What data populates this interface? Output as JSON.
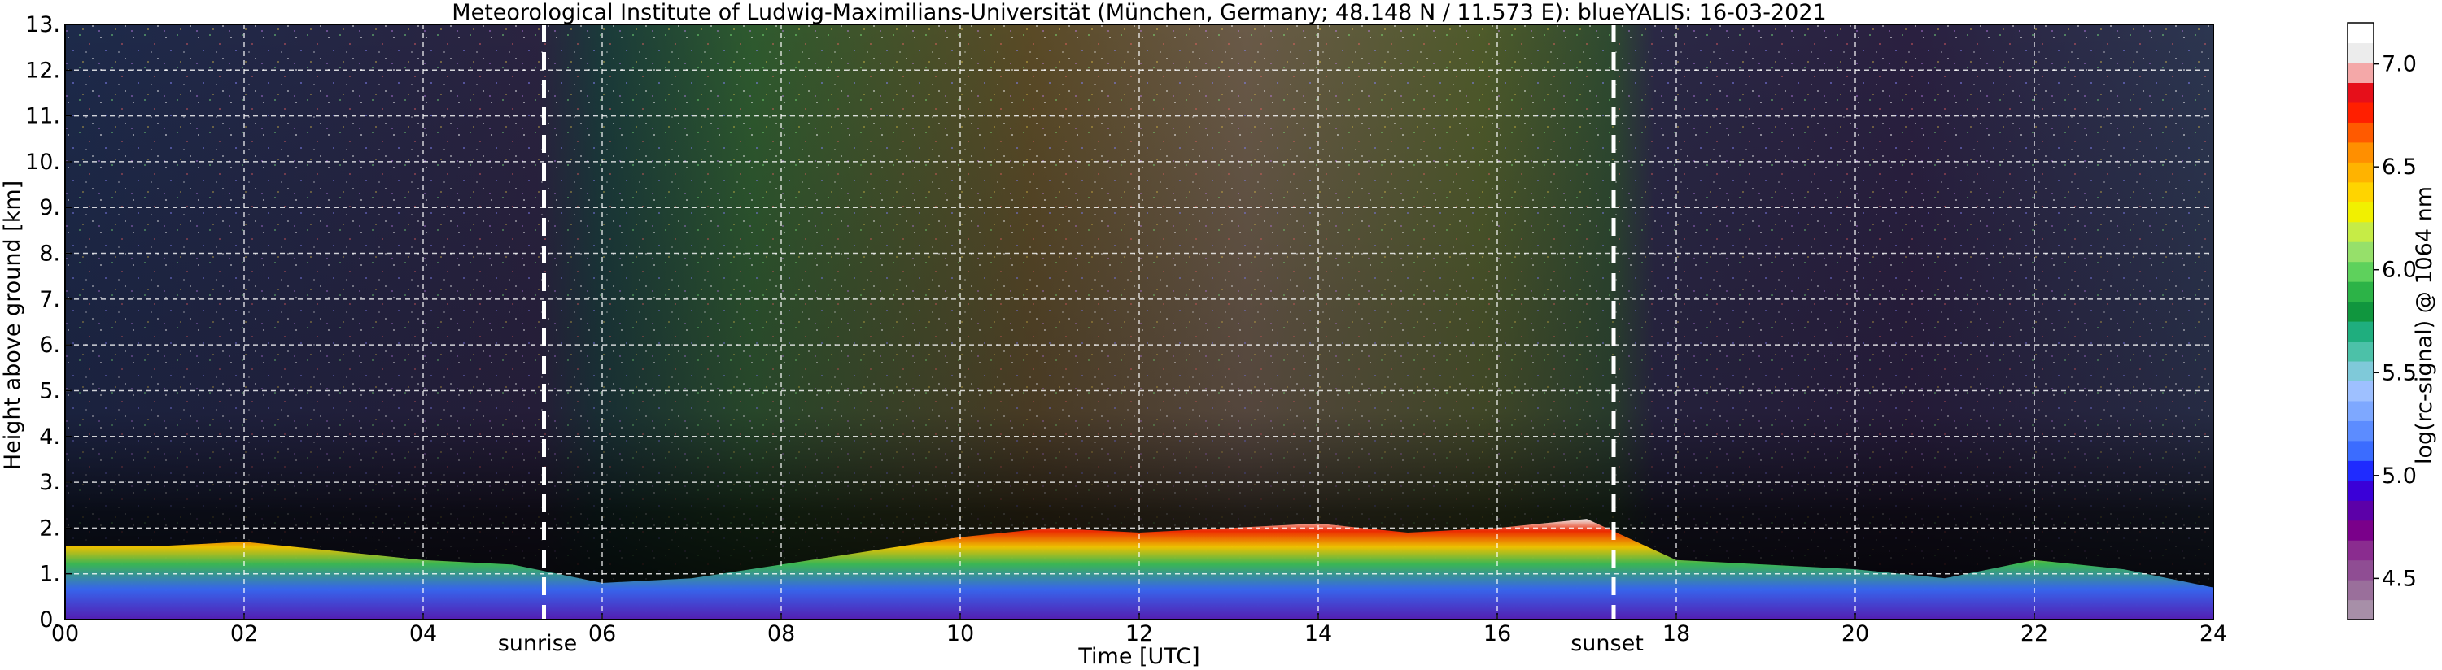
{
  "chart_data": {
    "type": "heatmap",
    "title": "Meteorological Institute of Ludwig-Maximilians-Universität (München, Germany; 48.148 N / 11.573 E):     blueYALIS: 16-03-2021",
    "xlabel": "Time [UTC]",
    "ylabel": "Height above ground [km]",
    "xlim": [
      0,
      24
    ],
    "ylim": [
      0,
      13
    ],
    "x_ticks": [
      "00",
      "02",
      "04",
      "06",
      "08",
      "10",
      "12",
      "14",
      "16",
      "18",
      "20",
      "22",
      "24"
    ],
    "y_ticks": [
      "0.",
      "1.",
      "2.",
      "3.",
      "4.",
      "5.",
      "6.",
      "7.",
      "8.",
      "9.",
      "10.",
      "11.",
      "12.",
      "13."
    ],
    "grid": true,
    "annotations": [
      {
        "label": "sunrise",
        "x": 5.35
      },
      {
        "label": "sunset",
        "x": 17.3
      }
    ],
    "colorbar": {
      "label": "log(rc-signal) @ 1064 nm",
      "range": [
        4.3,
        7.2
      ],
      "ticks": [
        "4.5",
        "5.0",
        "5.5",
        "6.0",
        "6.5",
        "7.0"
      ],
      "colors": [
        "#a78fa8",
        "#9a6f9b",
        "#8f4d93",
        "#8a2c8f",
        "#7a008a",
        "#5c00a8",
        "#3a00d8",
        "#1f2bff",
        "#3b6cff",
        "#5c8cff",
        "#7ea8ff",
        "#9ec0ff",
        "#7fc9d9",
        "#4cc1a8",
        "#1fae7e",
        "#10963e",
        "#2cb347",
        "#5ed15c",
        "#96e06a",
        "#c6ec46",
        "#f1f000",
        "#ffd400",
        "#ffb300",
        "#ff8f00",
        "#ff5a00",
        "#ff1f00",
        "#e60f1a",
        "#f4a8a8",
        "#ececec",
        "#ffffff"
      ]
    }
  }
}
